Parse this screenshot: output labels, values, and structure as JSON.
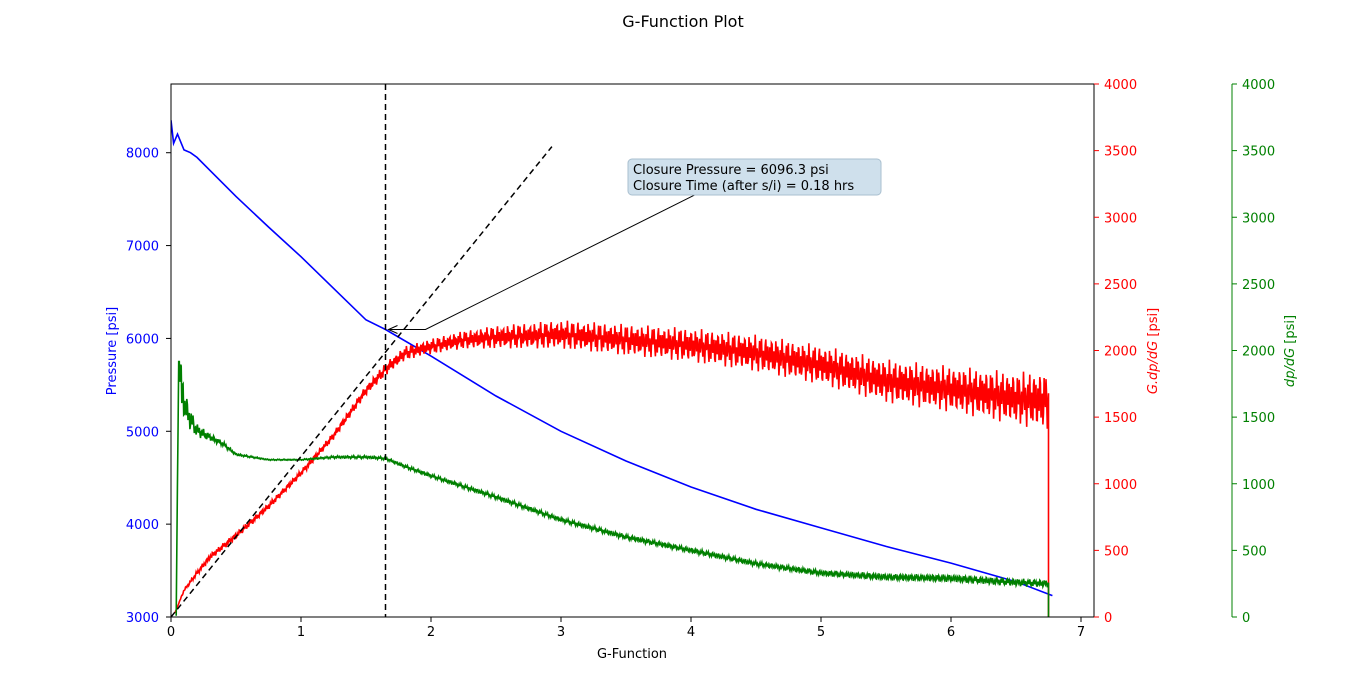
{
  "chart_data": {
    "type": "line",
    "title": "G-Function Plot",
    "xlabel": "G-Function",
    "xlim": [
      0,
      7.1
    ],
    "xticks": [
      0,
      1,
      2,
      3,
      4,
      5,
      6,
      7
    ],
    "axes": {
      "pressure": {
        "label": "Pressure [psi]",
        "color": "#0000ff",
        "side": "left",
        "ylim": [
          3000,
          8740
        ],
        "ticks": [
          3000,
          4000,
          5000,
          6000,
          7000,
          8000
        ]
      },
      "gdpdg": {
        "label_parts": [
          "G.dp/dG",
          " [psi]"
        ],
        "color": "#ff0000",
        "side": "right",
        "ylim": [
          0,
          4000
        ],
        "ticks": [
          0,
          500,
          1000,
          1500,
          2000,
          2500,
          3000,
          3500,
          4000
        ]
      },
      "dpdg": {
        "label_parts": [
          "dp/dG",
          " [psi]"
        ],
        "color": "#008000",
        "side": "right-outer",
        "ylim": [
          0,
          4000
        ],
        "ticks": [
          0,
          500,
          1000,
          1500,
          2000,
          2500,
          3000,
          3500,
          4000
        ]
      }
    },
    "series": [
      {
        "axis": "pressure",
        "color": "#0000ff",
        "x": [
          0,
          0.02,
          0.05,
          0.1,
          0.15,
          0.2,
          0.3,
          0.5,
          0.75,
          1.0,
          1.25,
          1.5,
          1.65,
          2.0,
          2.5,
          3.0,
          3.5,
          4.0,
          4.5,
          5.0,
          5.5,
          6.0,
          6.5,
          6.78
        ],
        "y": [
          8350,
          8100,
          8200,
          8030,
          8000,
          7950,
          7810,
          7530,
          7200,
          6880,
          6540,
          6200,
          6096,
          5810,
          5380,
          5000,
          4680,
          4400,
          4160,
          3960,
          3760,
          3580,
          3380,
          3230
        ]
      },
      {
        "axis": "gdpdg",
        "color": "#ff0000",
        "x": [
          0.03,
          0.1,
          0.2,
          0.3,
          0.5,
          0.75,
          1.0,
          1.25,
          1.5,
          1.65,
          1.8,
          2.0,
          2.25,
          2.5,
          3.0,
          3.5,
          4.0,
          4.5,
          5.0,
          5.5,
          6.0,
          6.5,
          6.75
        ],
        "y": [
          30,
          200,
          330,
          450,
          610,
          830,
          1080,
          1360,
          1700,
          1860,
          1980,
          2030,
          2080,
          2100,
          2120,
          2080,
          2040,
          1980,
          1890,
          1770,
          1710,
          1640,
          1620
        ],
        "noise": [
          0,
          10,
          20,
          25,
          25,
          25,
          25,
          30,
          40,
          50,
          55,
          60,
          70,
          90,
          110,
          120,
          130,
          140,
          150,
          165,
          175,
          200,
          230
        ]
      },
      {
        "axis": "dpdg",
        "color": "#008000",
        "x": [
          0.04,
          0.06,
          0.08,
          0.1,
          0.15,
          0.2,
          0.3,
          0.4,
          0.5,
          0.75,
          1.0,
          1.25,
          1.5,
          1.65,
          1.8,
          2.0,
          2.5,
          3.0,
          3.5,
          4.0,
          4.5,
          5.0,
          5.5,
          6.0,
          6.5,
          6.75
        ],
        "y": [
          10,
          2000,
          1700,
          1600,
          1480,
          1400,
          1350,
          1300,
          1220,
          1180,
          1180,
          1200,
          1200,
          1190,
          1130,
          1060,
          900,
          730,
          600,
          500,
          400,
          330,
          300,
          290,
          260,
          250
        ],
        "noise": [
          0,
          0,
          300,
          120,
          90,
          50,
          30,
          20,
          10,
          5,
          5,
          10,
          12,
          12,
          14,
          15,
          18,
          18,
          20,
          20,
          20,
          22,
          26,
          28,
          30,
          30
        ]
      }
    ],
    "closure": {
      "g": 1.65,
      "pressure": 6096.3,
      "tangent_line": {
        "x": [
          0,
          2.93
        ],
        "y_gdpdg": [
          0,
          3530
        ]
      },
      "annotation": {
        "line1": "Closure Pressure = 6096.3 psi",
        "line2": "Closure Time (after s/i) = 0.18  hrs",
        "anchor_x": 4.3,
        "anchor_y_gdpdg": 3300,
        "text_x": 3.58,
        "text_y_gdpdg": 3560
      }
    }
  }
}
